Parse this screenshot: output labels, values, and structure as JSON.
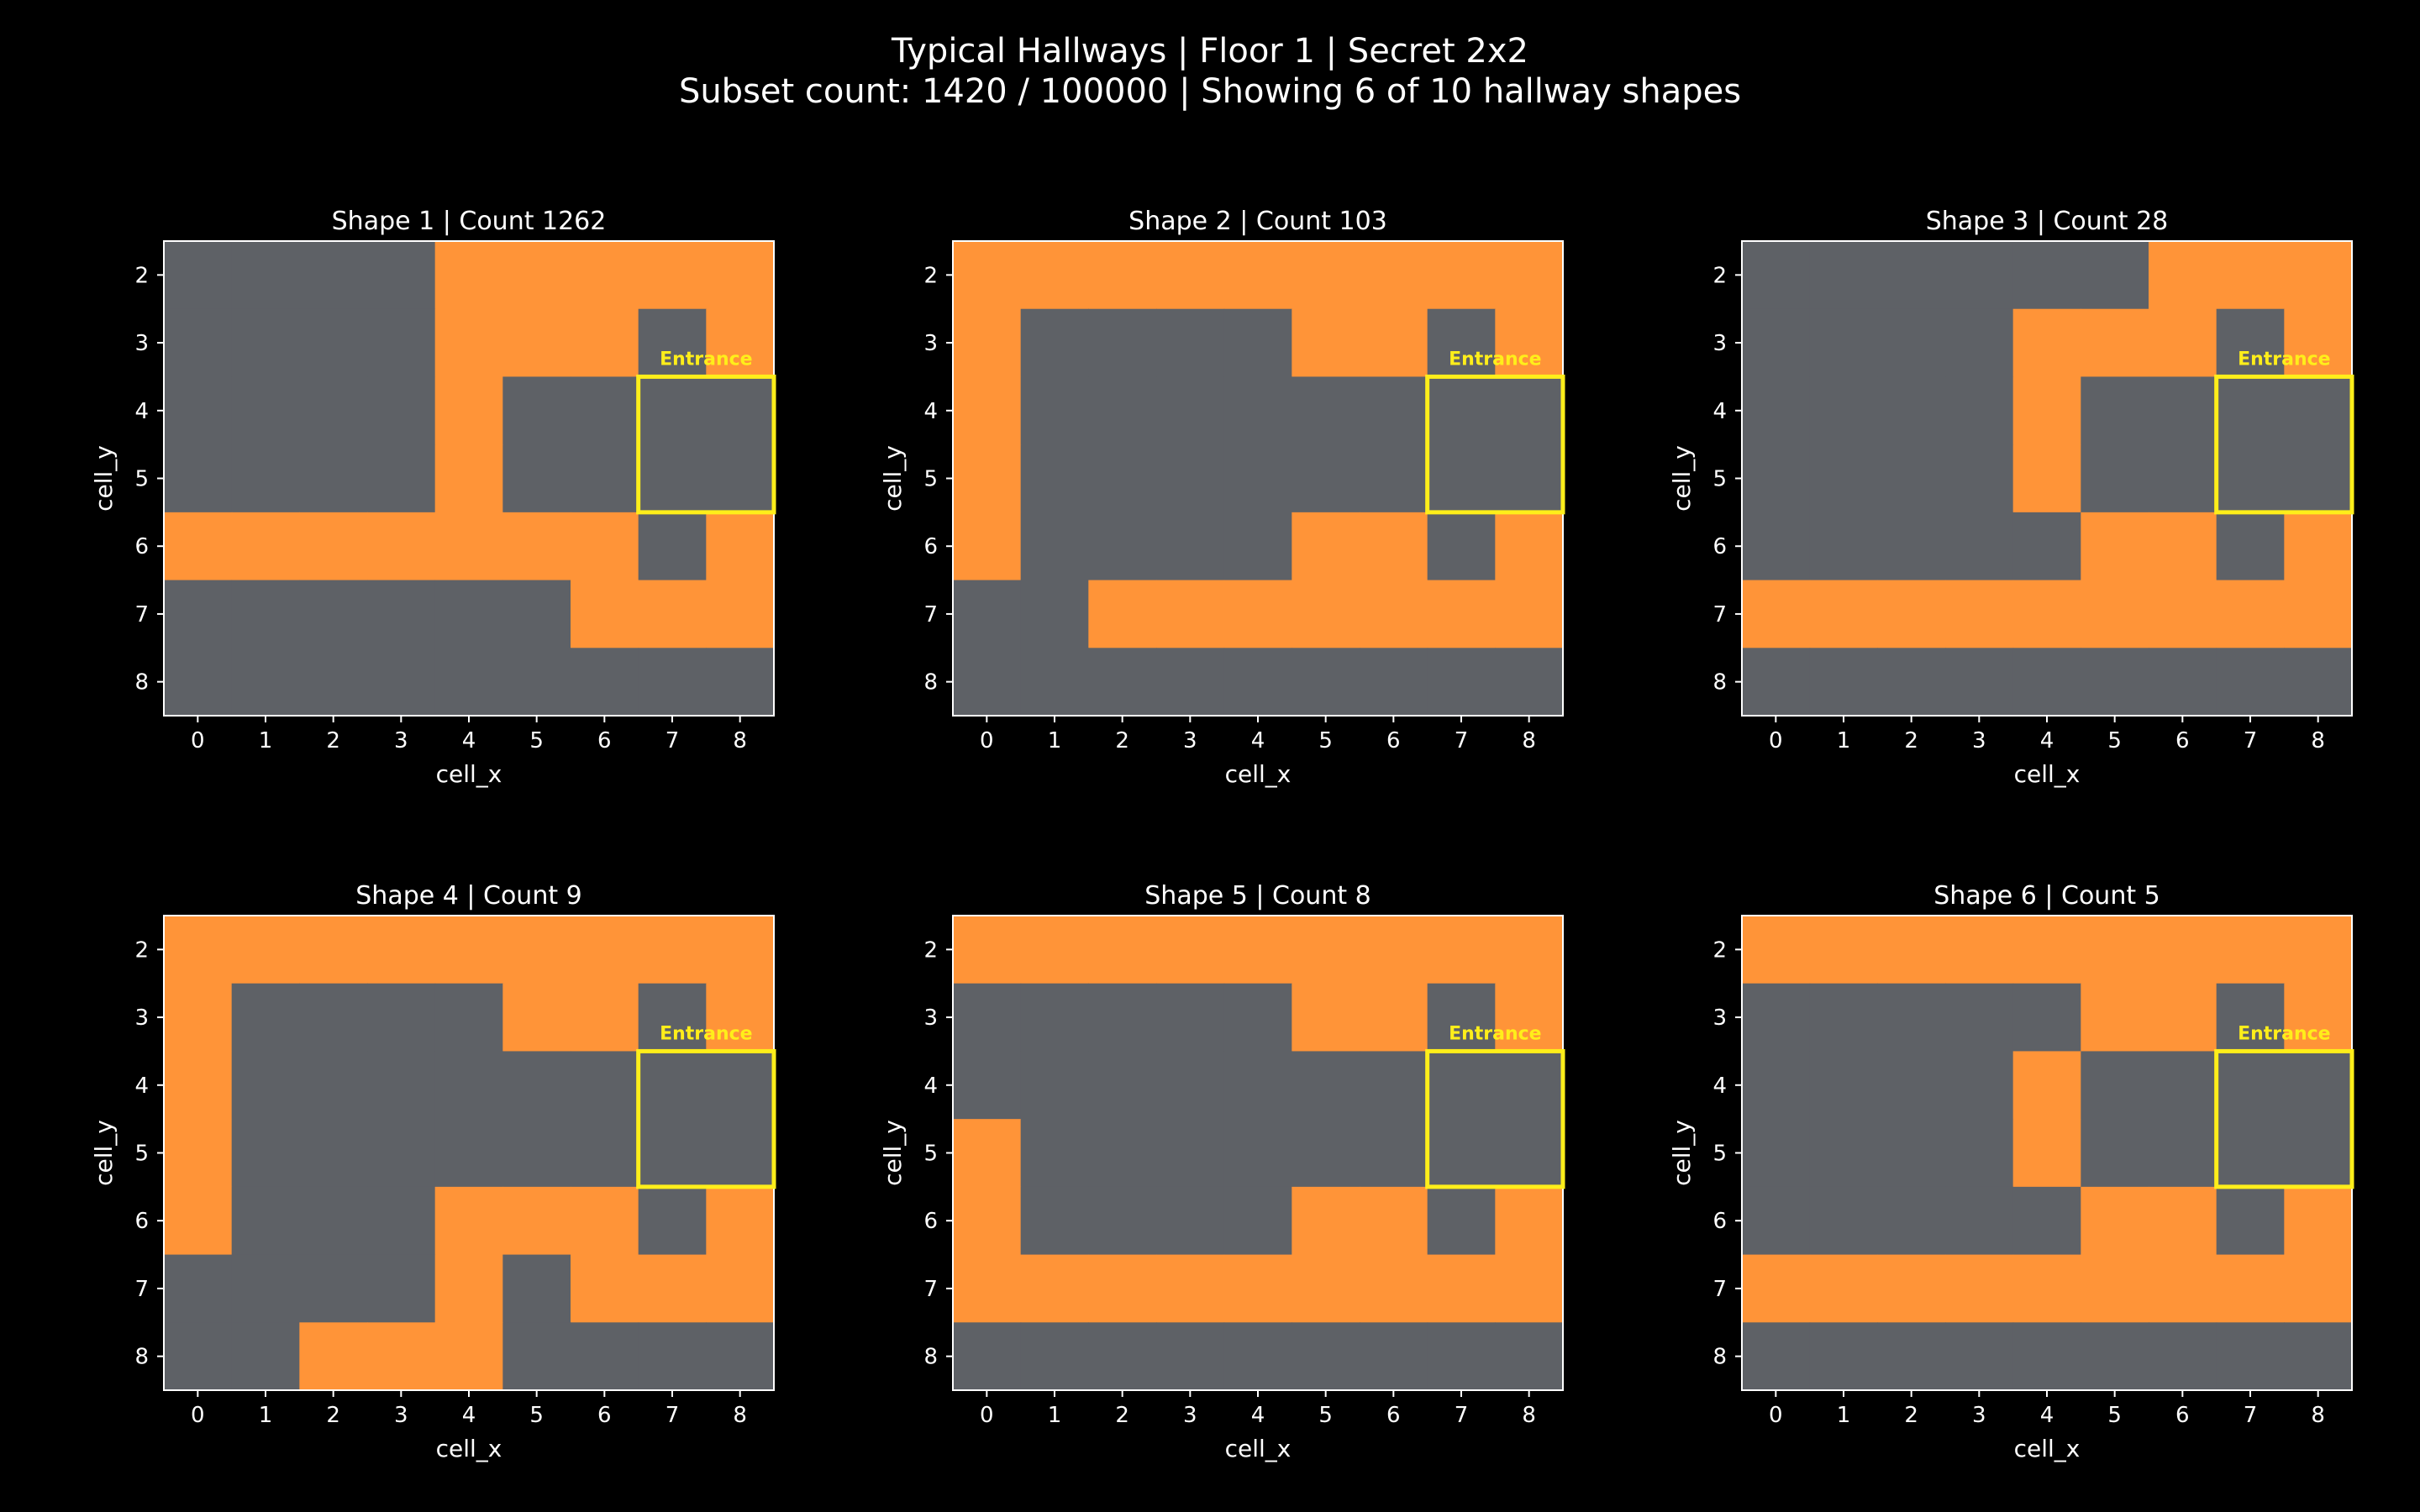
{
  "figure": {
    "title_line1": "Typical Hallways | Floor 1 | Secret 2x2",
    "title_line2": "Subset count: 1420 / 100000 | Showing 6 of 10 hallway shapes"
  },
  "colors": {
    "background": "#000000",
    "hallway": "#ff9438",
    "wall": "#5e6166",
    "entrance": "#ffee1a",
    "text": "#ffffff"
  },
  "legend": {
    "hallway_value": 1,
    "wall_value": 0
  },
  "chart_data": [
    {
      "type": "heatmap",
      "title": "Shape 1 | Count 1262",
      "xlabel": "cell_x",
      "ylabel": "cell_y",
      "x": [
        0,
        1,
        2,
        3,
        4,
        5,
        6,
        7,
        8
      ],
      "y": [
        2,
        3,
        4,
        5,
        6,
        7,
        8
      ],
      "values": [
        [
          0,
          0,
          0,
          0,
          1,
          1,
          1,
          1,
          1
        ],
        [
          0,
          0,
          0,
          0,
          1,
          1,
          1,
          0,
          1
        ],
        [
          0,
          0,
          0,
          0,
          1,
          0,
          0,
          0,
          0
        ],
        [
          0,
          0,
          0,
          0,
          1,
          0,
          0,
          0,
          0
        ],
        [
          1,
          1,
          1,
          1,
          1,
          1,
          1,
          0,
          1
        ],
        [
          0,
          0,
          0,
          0,
          0,
          0,
          1,
          1,
          1
        ],
        [
          0,
          0,
          0,
          0,
          0,
          0,
          0,
          0,
          0
        ]
      ],
      "entrance": {
        "label": "Entrance",
        "x": [
          7,
          8
        ],
        "y": [
          4,
          5
        ]
      }
    },
    {
      "type": "heatmap",
      "title": "Shape 2 | Count 103",
      "xlabel": "cell_x",
      "ylabel": "cell_y",
      "x": [
        0,
        1,
        2,
        3,
        4,
        5,
        6,
        7,
        8
      ],
      "y": [
        2,
        3,
        4,
        5,
        6,
        7,
        8
      ],
      "values": [
        [
          1,
          1,
          1,
          1,
          1,
          1,
          1,
          1,
          1
        ],
        [
          1,
          0,
          0,
          0,
          0,
          1,
          1,
          0,
          1
        ],
        [
          1,
          0,
          0,
          0,
          0,
          0,
          0,
          0,
          0
        ],
        [
          1,
          0,
          0,
          0,
          0,
          0,
          0,
          0,
          0
        ],
        [
          1,
          0,
          0,
          0,
          0,
          1,
          1,
          0,
          1
        ],
        [
          0,
          0,
          1,
          1,
          1,
          1,
          1,
          1,
          1
        ],
        [
          0,
          0,
          0,
          0,
          0,
          0,
          0,
          0,
          0
        ]
      ],
      "entrance": {
        "label": "Entrance",
        "x": [
          7,
          8
        ],
        "y": [
          4,
          5
        ]
      }
    },
    {
      "type": "heatmap",
      "title": "Shape 3 | Count 28",
      "xlabel": "cell_x",
      "ylabel": "cell_y",
      "x": [
        0,
        1,
        2,
        3,
        4,
        5,
        6,
        7,
        8
      ],
      "y": [
        2,
        3,
        4,
        5,
        6,
        7,
        8
      ],
      "values": [
        [
          0,
          0,
          0,
          0,
          0,
          0,
          1,
          1,
          1
        ],
        [
          0,
          0,
          0,
          0,
          1,
          1,
          1,
          0,
          1
        ],
        [
          0,
          0,
          0,
          0,
          1,
          0,
          0,
          0,
          0
        ],
        [
          0,
          0,
          0,
          0,
          1,
          0,
          0,
          0,
          0
        ],
        [
          0,
          0,
          0,
          0,
          0,
          1,
          1,
          0,
          1
        ],
        [
          1,
          1,
          1,
          1,
          1,
          1,
          1,
          1,
          1
        ],
        [
          0,
          0,
          0,
          0,
          0,
          0,
          0,
          0,
          0
        ]
      ],
      "entrance": {
        "label": "Entrance",
        "x": [
          7,
          8
        ],
        "y": [
          4,
          5
        ]
      }
    },
    {
      "type": "heatmap",
      "title": "Shape 4 | Count 9",
      "xlabel": "cell_x",
      "ylabel": "cell_y",
      "x": [
        0,
        1,
        2,
        3,
        4,
        5,
        6,
        7,
        8
      ],
      "y": [
        2,
        3,
        4,
        5,
        6,
        7,
        8
      ],
      "values": [
        [
          1,
          1,
          1,
          1,
          1,
          1,
          1,
          1,
          1
        ],
        [
          1,
          0,
          0,
          0,
          0,
          1,
          1,
          0,
          1
        ],
        [
          1,
          0,
          0,
          0,
          0,
          0,
          0,
          0,
          0
        ],
        [
          1,
          0,
          0,
          0,
          0,
          0,
          0,
          0,
          0
        ],
        [
          1,
          0,
          0,
          0,
          1,
          1,
          1,
          0,
          1
        ],
        [
          0,
          0,
          0,
          0,
          1,
          0,
          1,
          1,
          1
        ],
        [
          0,
          0,
          1,
          1,
          1,
          0,
          0,
          0,
          0
        ]
      ],
      "entrance": {
        "label": "Entrance",
        "x": [
          7,
          8
        ],
        "y": [
          4,
          5
        ]
      }
    },
    {
      "type": "heatmap",
      "title": "Shape 5 | Count 8",
      "xlabel": "cell_x",
      "ylabel": "cell_y",
      "x": [
        0,
        1,
        2,
        3,
        4,
        5,
        6,
        7,
        8
      ],
      "y": [
        2,
        3,
        4,
        5,
        6,
        7,
        8
      ],
      "values": [
        [
          1,
          1,
          1,
          1,
          1,
          1,
          1,
          1,
          1
        ],
        [
          0,
          0,
          0,
          0,
          0,
          1,
          1,
          0,
          1
        ],
        [
          0,
          0,
          0,
          0,
          0,
          0,
          0,
          0,
          0
        ],
        [
          1,
          0,
          0,
          0,
          0,
          0,
          0,
          0,
          0
        ],
        [
          1,
          0,
          0,
          0,
          0,
          1,
          1,
          0,
          1
        ],
        [
          1,
          1,
          1,
          1,
          1,
          1,
          1,
          1,
          1
        ],
        [
          0,
          0,
          0,
          0,
          0,
          0,
          0,
          0,
          0
        ]
      ],
      "entrance": {
        "label": "Entrance",
        "x": [
          7,
          8
        ],
        "y": [
          4,
          5
        ]
      }
    },
    {
      "type": "heatmap",
      "title": "Shape 6 | Count 5",
      "xlabel": "cell_x",
      "ylabel": "cell_y",
      "x": [
        0,
        1,
        2,
        3,
        4,
        5,
        6,
        7,
        8
      ],
      "y": [
        2,
        3,
        4,
        5,
        6,
        7,
        8
      ],
      "values": [
        [
          1,
          1,
          1,
          1,
          1,
          1,
          1,
          1,
          1
        ],
        [
          0,
          0,
          0,
          0,
          0,
          1,
          1,
          0,
          1
        ],
        [
          0,
          0,
          0,
          0,
          1,
          0,
          0,
          0,
          0
        ],
        [
          0,
          0,
          0,
          0,
          1,
          0,
          0,
          0,
          0
        ],
        [
          0,
          0,
          0,
          0,
          0,
          1,
          1,
          0,
          1
        ],
        [
          1,
          1,
          1,
          1,
          1,
          1,
          1,
          1,
          1
        ],
        [
          0,
          0,
          0,
          0,
          0,
          0,
          0,
          0,
          0
        ]
      ],
      "entrance": {
        "label": "Entrance",
        "x": [
          7,
          8
        ],
        "y": [
          4,
          5
        ]
      }
    }
  ]
}
